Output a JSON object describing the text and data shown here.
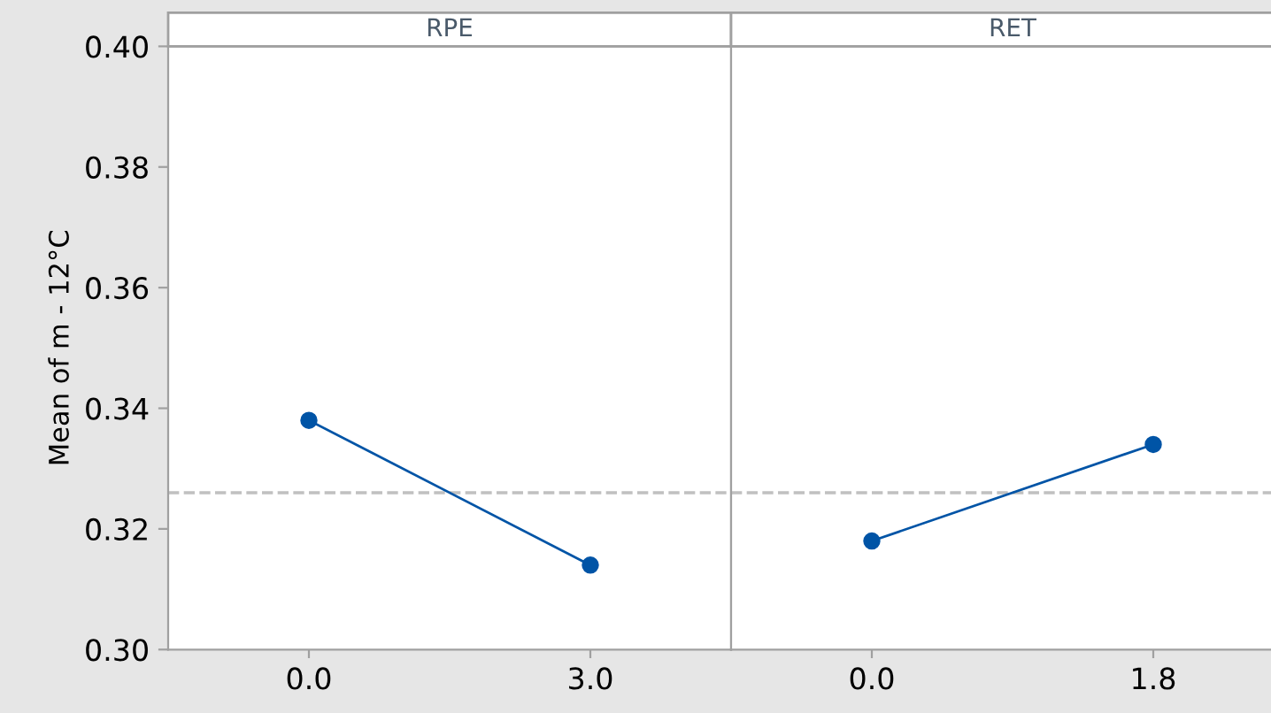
{
  "chart_data": [
    {
      "type": "line",
      "title": "RPE",
      "ylabel": "Mean of m - 12°C",
      "categories": [
        "0.0",
        "3.0"
      ],
      "series": [
        {
          "color": "#0054a6",
          "values": [
            0.338,
            0.314
          ]
        }
      ],
      "ylim": [
        0.3,
        0.4
      ],
      "yticks": [
        {
          "value": 0.3,
          "label": "0.30"
        },
        {
          "value": 0.32,
          "label": "0.32"
        },
        {
          "value": 0.34,
          "label": "0.34"
        },
        {
          "value": 0.36,
          "label": "0.36"
        },
        {
          "value": 0.38,
          "label": "0.38"
        },
        {
          "value": 0.4,
          "label": "0.40"
        }
      ],
      "ref_lines": [
        {
          "axis": "y",
          "value": 0.326,
          "color": "#c0c0c0",
          "line_style": "dashed"
        }
      ],
      "marker": "circle",
      "line_style": "solid",
      "grid": false,
      "legend": false
    },
    {
      "type": "line",
      "title": "RET",
      "categories": [
        "0.0",
        "1.8"
      ],
      "series": [
        {
          "color": "#0054a6",
          "values": [
            0.318,
            0.334
          ]
        }
      ],
      "ylim": [
        0.3,
        0.4
      ],
      "ref_lines": [
        {
          "axis": "y",
          "value": 0.326,
          "color": "#c0c0c0",
          "line_style": "dashed"
        }
      ],
      "marker": "circle",
      "line_style": "solid",
      "grid": false,
      "legend": false,
      "tick_labels": "x"
    }
  ]
}
